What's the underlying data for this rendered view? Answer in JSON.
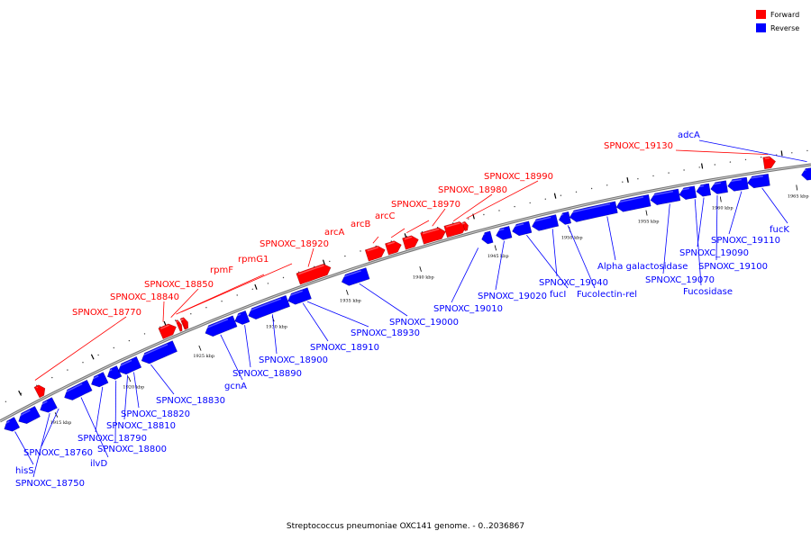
{
  "caption": "Streptococcus pneumoniae OXC141 genome. - 0..2036867",
  "legend": [
    {
      "label": "Forward",
      "color": "#ff0000"
    },
    {
      "label": "Reverse",
      "color": "#0000ff"
    }
  ],
  "colors": {
    "forward": "#ff0000",
    "reverse": "#0000ff",
    "backbone": "#888888"
  },
  "axis_ticks": [
    "1915 kbp",
    "1920 kbp",
    "1925 kbp",
    "1930 kbp",
    "1935 kbp",
    "1940 kbp",
    "1945 kbp",
    "1950 kbp",
    "1955 kbp",
    "1960 kbp",
    "1965 kbp"
  ],
  "forward_genes": [
    "SPNOXC_18770",
    "SPNOXC_18840",
    "SPNOXC_18850",
    "rpmF",
    "rpmG1",
    "SPNOXC_18920",
    "arcA",
    "arcB",
    "arcC",
    "SPNOXC_18970",
    "SPNOXC_18980",
    "SPNOXC_18990",
    "SPNOXC_19130"
  ],
  "reverse_genes": [
    "hisS",
    "SPNOXC_18750",
    "SPNOXC_18760",
    "ilvD",
    "SPNOXC_18790",
    "SPNOXC_18800",
    "SPNOXC_18810",
    "SPNOXC_18820",
    "SPNOXC_18830",
    "gcnA",
    "SPNOXC_18890",
    "SPNOXC_18900",
    "SPNOXC_18910",
    "SPNOXC_18930",
    "SPNOXC_19000",
    "SPNOXC_19010",
    "SPNOXC_19020",
    "fucI",
    "SPNOXC_19040",
    "Fucolectin-rel",
    "Alpha galactosidase",
    "SPNOXC_19070",
    "Fucosidase",
    "SPNOXC_19090",
    "SPNOXC_19100",
    "SPNOXC_19110",
    "fucK",
    "adcA"
  ]
}
